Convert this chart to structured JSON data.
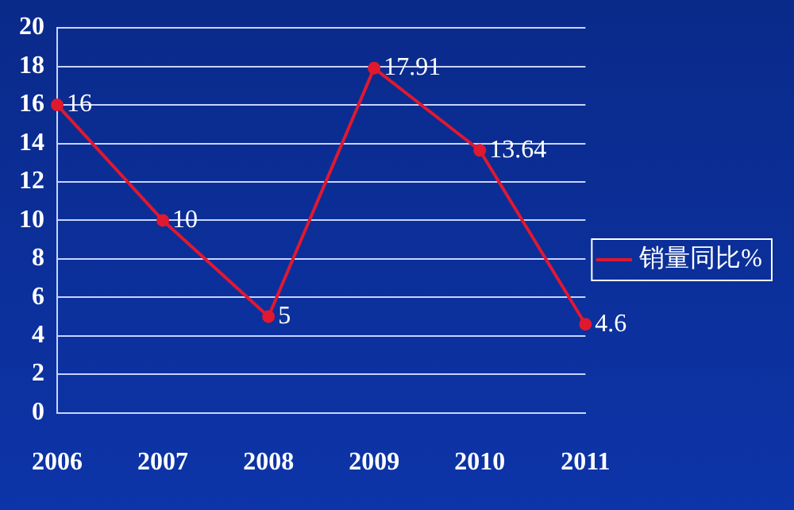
{
  "chart_data": {
    "type": "line",
    "categories": [
      "2006",
      "2007",
      "2008",
      "2009",
      "2010",
      "2011"
    ],
    "series": [
      {
        "name": "销量同比%",
        "color": "#e01830",
        "values": [
          16,
          10,
          5,
          17.91,
          13.64,
          4.6
        ]
      }
    ],
    "ylim": [
      0,
      20
    ],
    "yticks": [
      0,
      2,
      4,
      6,
      8,
      10,
      12,
      14,
      16,
      18,
      20
    ],
    "grid": "y",
    "legend": "right",
    "marker": "circle",
    "line_style": "solid",
    "data_labels": true
  }
}
